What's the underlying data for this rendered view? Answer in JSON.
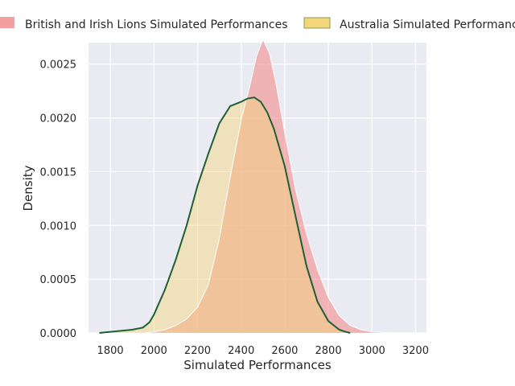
{
  "chart_data": {
    "type": "area",
    "title": "",
    "xlabel": "Simulated Performances",
    "ylabel": "Density",
    "xlim": [
      1700,
      3250
    ],
    "ylim": [
      0,
      0.0027
    ],
    "xticks": [
      1800,
      2000,
      2200,
      2400,
      2600,
      2800,
      3000,
      3200
    ],
    "xtick_labels": [
      "1800",
      "2000",
      "2200",
      "2400",
      "2600",
      "2800",
      "3000",
      "3200"
    ],
    "yticks": [
      0.0,
      0.0005,
      0.001,
      0.0015,
      0.002,
      0.0025
    ],
    "ytick_labels": [
      "0.0000",
      "0.0005",
      "0.0010",
      "0.0015",
      "0.0020",
      "0.0025"
    ],
    "grid": true,
    "legend_position": "top",
    "series": [
      {
        "name": "British and Irish Lions Simulated Performances",
        "fill_color": "#f28e8e",
        "line_color": "#ffffff",
        "x": [
          1960,
          2000,
          2050,
          2100,
          2150,
          2200,
          2250,
          2300,
          2350,
          2400,
          2440,
          2470,
          2500,
          2530,
          2560,
          2600,
          2650,
          2700,
          2750,
          2800,
          2850,
          2900,
          2950,
          3000,
          3050,
          3100,
          3150,
          3200
        ],
        "y": [
          0.0,
          1e-05,
          3e-05,
          7e-05,
          0.00013,
          0.00024,
          0.00045,
          0.00088,
          0.00145,
          0.00198,
          0.0023,
          0.00257,
          0.00273,
          0.0026,
          0.00232,
          0.00186,
          0.00133,
          0.00092,
          0.00059,
          0.00033,
          0.00016,
          7e-05,
          3e-05,
          1e-05,
          5e-06,
          2e-06,
          1e-06,
          0.0
        ]
      },
      {
        "name": "Australia Simulated Performances",
        "fill_color": "#f4d67a",
        "line_color": "#1f5f34",
        "x": [
          1750,
          1800,
          1850,
          1900,
          1950,
          1980,
          2000,
          2050,
          2100,
          2150,
          2200,
          2250,
          2300,
          2350,
          2400,
          2430,
          2460,
          2490,
          2520,
          2550,
          2600,
          2650,
          2700,
          2750,
          2800,
          2850,
          2880,
          2900
        ],
        "y": [
          0.0,
          1e-05,
          2e-05,
          3e-05,
          5e-05,
          0.0001,
          0.00017,
          0.0004,
          0.00068,
          0.001,
          0.00137,
          0.00167,
          0.00195,
          0.00211,
          0.00215,
          0.00218,
          0.00219,
          0.00215,
          0.00205,
          0.0019,
          0.00155,
          0.00108,
          0.00062,
          0.00029,
          0.00011,
          3e-05,
          1e-05,
          0.0
        ]
      }
    ]
  }
}
